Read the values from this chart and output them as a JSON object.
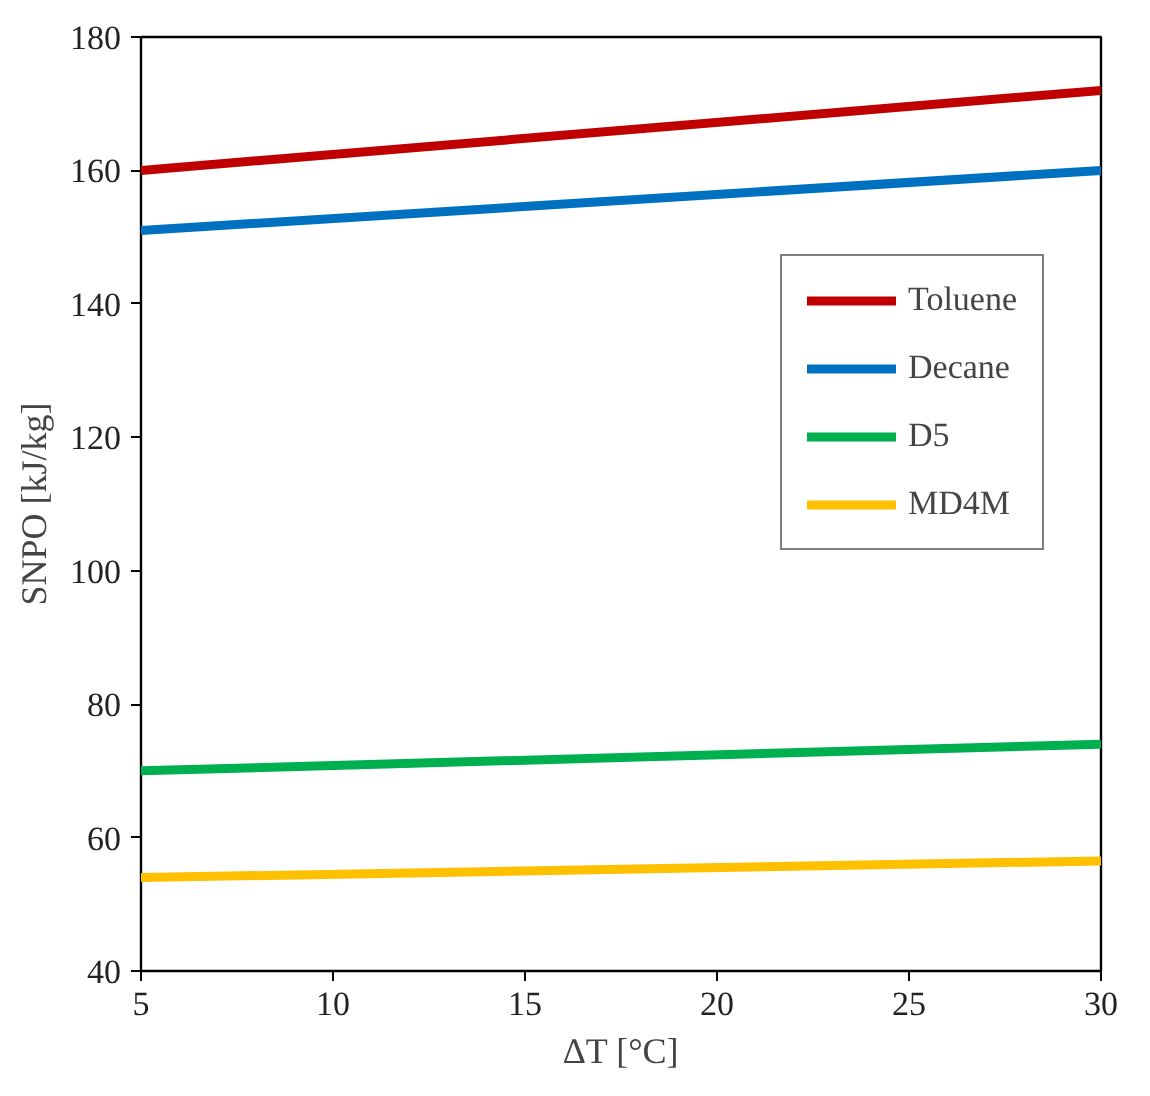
{
  "chart_data": {
    "type": "line",
    "xlabel": "ΔT [°C]",
    "ylabel": "SNPO [kJ/kg]",
    "x": [
      5,
      30
    ],
    "series": [
      {
        "name": "Toluene",
        "color": "#c00000",
        "values": [
          160,
          172
        ]
      },
      {
        "name": "Decane",
        "color": "#0070c0",
        "values": [
          151,
          160
        ]
      },
      {
        "name": "D5",
        "color": "#00b050",
        "values": [
          70,
          74
        ]
      },
      {
        "name": "MD4M",
        "color": "#ffc000",
        "values": [
          54,
          56.5
        ]
      }
    ],
    "xlim": [
      5,
      30
    ],
    "xticks": [
      5,
      10,
      15,
      20,
      25,
      30
    ],
    "ylim": [
      40,
      180
    ],
    "yticks": [
      40,
      60,
      80,
      100,
      120,
      140,
      160,
      180
    ],
    "grid": false,
    "legend": "right",
    "marker": "none",
    "line_style": "solid"
  }
}
